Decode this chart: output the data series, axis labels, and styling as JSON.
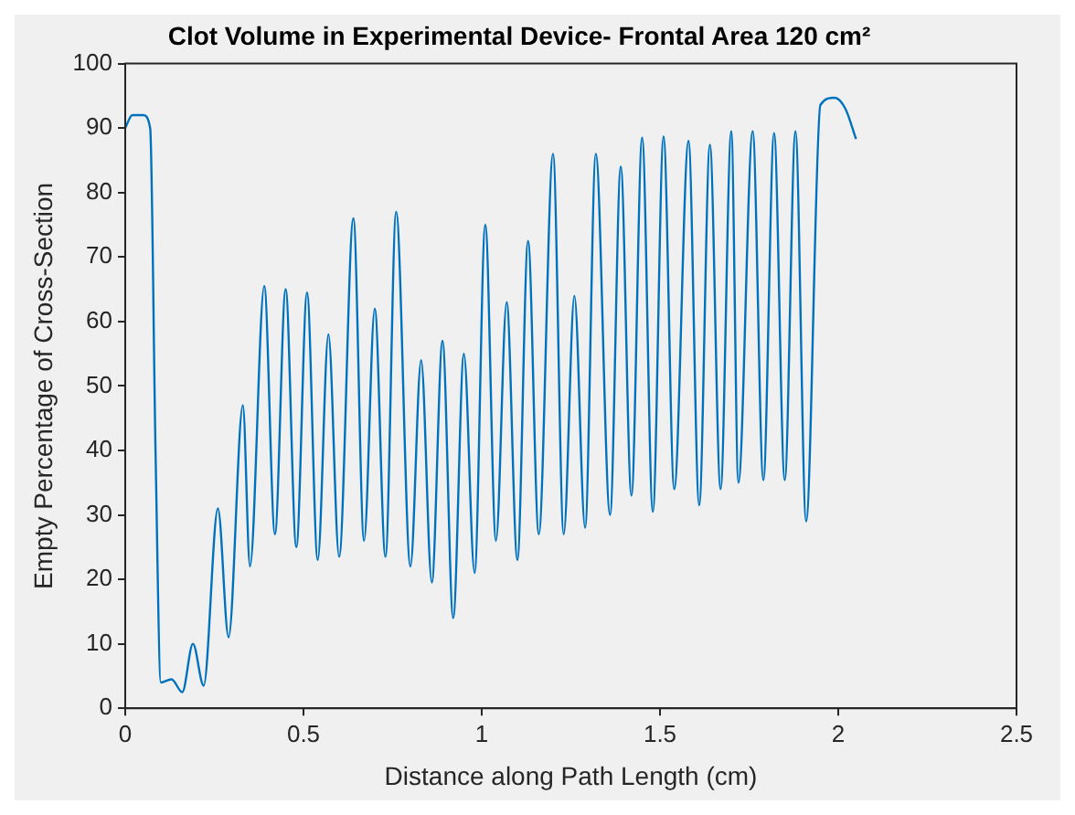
{
  "chart_data": {
    "type": "line",
    "title": "Clot Volume in Experimental Device- Frontal Area 120 cm²",
    "xlabel": "Distance along Path Length (cm)",
    "ylabel": "Empty Percentage of Cross-Section",
    "xlim": [
      0,
      2.5
    ],
    "xticks": [
      0,
      0.5,
      1,
      1.5,
      2,
      2.5
    ],
    "ylim": [
      0,
      100
    ],
    "yticks": [
      0,
      10,
      20,
      30,
      40,
      50,
      60,
      70,
      80,
      90,
      100
    ],
    "grid": false,
    "legend": false,
    "marker": "none",
    "line_style": "solid",
    "series": [
      {
        "color": "#0072bd",
        "x": [
          0,
          0.02,
          0.05,
          0.07,
          0.085,
          0.1,
          0.13,
          0.16,
          0.19,
          0.22,
          0.26,
          0.29,
          0.33,
          0.35,
          0.39,
          0.42,
          0.45,
          0.48,
          0.51,
          0.54,
          0.57,
          0.6,
          0.64,
          0.67,
          0.7,
          0.73,
          0.76,
          0.8,
          0.83,
          0.86,
          0.89,
          0.92,
          0.95,
          0.98,
          1.01,
          1.04,
          1.07,
          1.1,
          1.13,
          1.16,
          1.2,
          1.23,
          1.26,
          1.29,
          1.32,
          1.36,
          1.39,
          1.42,
          1.45,
          1.48,
          1.51,
          1.54,
          1.58,
          1.61,
          1.64,
          1.67,
          1.7,
          1.72,
          1.76,
          1.79,
          1.82,
          1.85,
          1.88,
          1.91,
          1.95,
          1.99,
          2.02,
          2.05
        ],
        "values": [
          90,
          92,
          92,
          90,
          40,
          4,
          4.5,
          2.5,
          10,
          3.5,
          31,
          11,
          47,
          22,
          65.5,
          27,
          65,
          25,
          64.5,
          23,
          58,
          23.5,
          76,
          26,
          62,
          23.5,
          77,
          22,
          54,
          19.5,
          57,
          14,
          55,
          21,
          75,
          26,
          63,
          23,
          72.5,
          27,
          86,
          27,
          64,
          28,
          86,
          30,
          84,
          33,
          88.5,
          30.5,
          88.7,
          34,
          88,
          31.5,
          87.4,
          34,
          89.5,
          35,
          89.5,
          35.4,
          89.2,
          35.4,
          89.5,
          29,
          93.6,
          94.7,
          93,
          88.3
        ]
      }
    ]
  }
}
